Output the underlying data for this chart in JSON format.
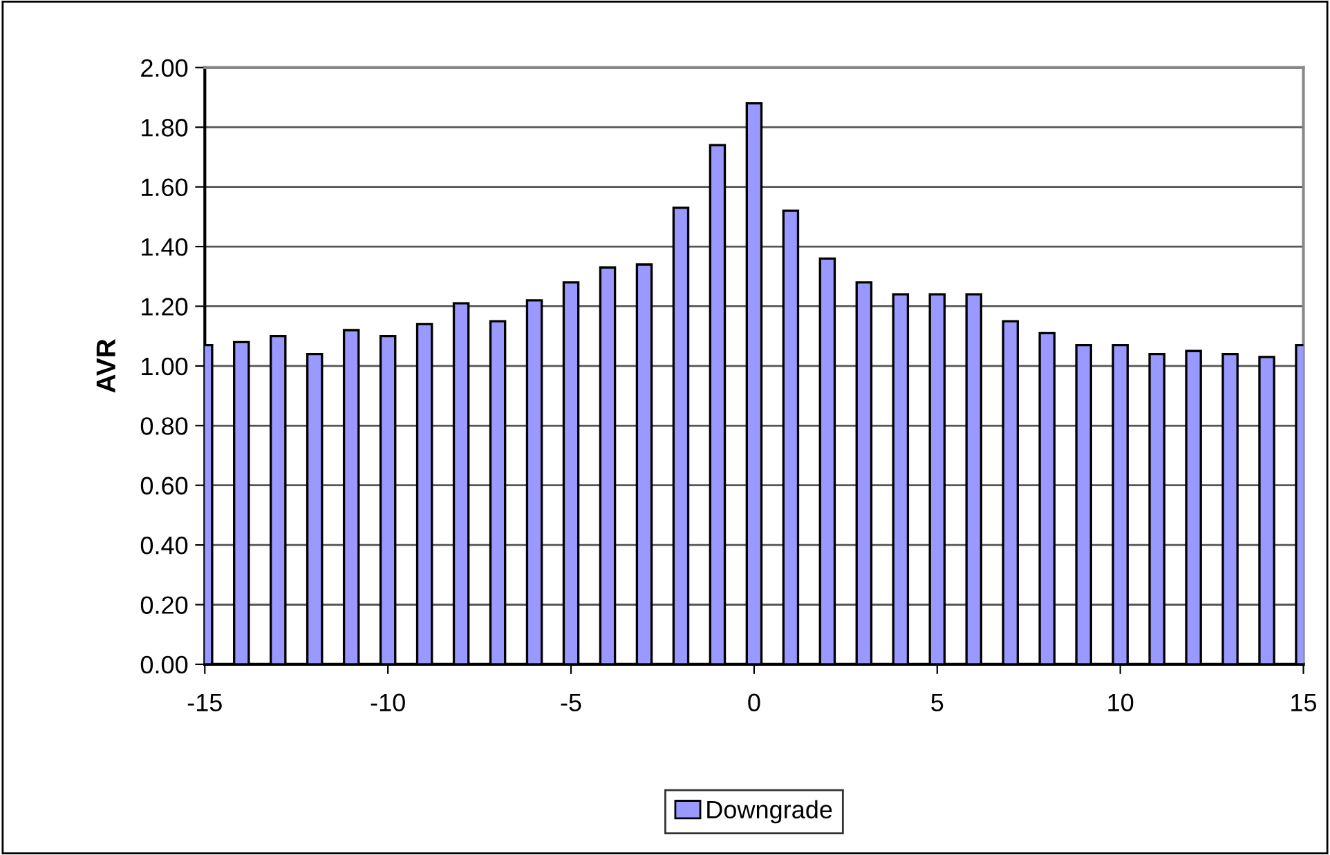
{
  "chart_data": {
    "type": "bar",
    "ylabel": "AVR",
    "x": [
      -15,
      -14,
      -13,
      -12,
      -11,
      -10,
      -9,
      -8,
      -7,
      -6,
      -5,
      -4,
      -3,
      -2,
      -1,
      0,
      1,
      2,
      3,
      4,
      5,
      6,
      7,
      8,
      9,
      10,
      11,
      12,
      13,
      14,
      15
    ],
    "series": [
      {
        "name": "Downgrade",
        "color": "#9999ff",
        "values": [
          1.07,
          1.08,
          1.1,
          1.04,
          1.12,
          1.1,
          1.14,
          1.21,
          1.15,
          1.22,
          1.28,
          1.33,
          1.34,
          1.53,
          1.74,
          1.88,
          1.52,
          1.36,
          1.28,
          1.24,
          1.24,
          1.24,
          1.15,
          1.11,
          1.07,
          1.07,
          1.04,
          1.05,
          1.04,
          1.03,
          1.07
        ]
      }
    ],
    "xlim": [
      -15,
      15
    ],
    "xticks": [
      -15,
      -10,
      -5,
      0,
      5,
      10,
      15
    ],
    "ylim": [
      0,
      2
    ],
    "yticks": [
      {
        "value": 0,
        "label": "0.00"
      },
      {
        "value": 0.2,
        "label": "0.20"
      },
      {
        "value": 0.4,
        "label": "0.40"
      },
      {
        "value": 0.6,
        "label": "0.60"
      },
      {
        "value": 0.8,
        "label": "0.80"
      },
      {
        "value": 1.0,
        "label": "1.00"
      },
      {
        "value": 1.2,
        "label": "1.20"
      },
      {
        "value": 1.4,
        "label": "1.40"
      },
      {
        "value": 1.6,
        "label": "1.60"
      },
      {
        "value": 1.8,
        "label": "1.80"
      },
      {
        "value": 2.0,
        "label": "2.00"
      }
    ],
    "grid": "y",
    "legend": "bottom"
  }
}
